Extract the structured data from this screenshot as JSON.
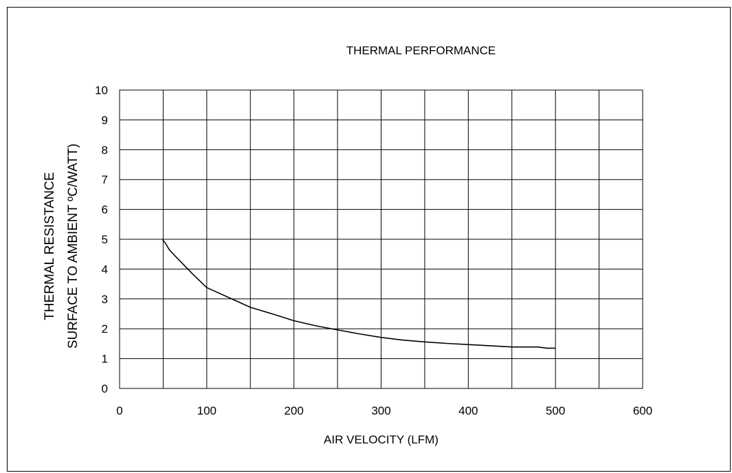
{
  "chart_data": {
    "type": "line",
    "title": "THERMAL PERFORMANCE",
    "xlabel": "AIR VELOCITY (LFM)",
    "ylabel_lines": [
      "THERMAL RESISTANCE",
      "SURFACE TO AMBIENT ºC/WATT)"
    ],
    "xlim": [
      0,
      600
    ],
    "ylim": [
      0,
      10
    ],
    "x_ticks": [
      0,
      100,
      200,
      300,
      400,
      500,
      600
    ],
    "y_ticks": [
      0,
      1,
      2,
      3,
      4,
      5,
      6,
      7,
      8,
      9,
      10
    ],
    "grid": true,
    "x_grid_step": 50,
    "y_grid_step": 1,
    "line_color": "#000000",
    "series": [
      {
        "x": [
          49,
          53,
          57,
          65,
          75,
          85,
          100,
          125,
          150,
          175,
          200,
          225,
          250,
          275,
          300,
          325,
          350,
          375,
          400,
          425,
          450,
          475,
          480,
          490,
          500
        ],
        "y": [
          5.0,
          4.85,
          4.65,
          4.4,
          4.1,
          3.8,
          3.38,
          3.05,
          2.72,
          2.5,
          2.27,
          2.1,
          1.96,
          1.83,
          1.71,
          1.62,
          1.56,
          1.51,
          1.47,
          1.43,
          1.39,
          1.39,
          1.39,
          1.35,
          1.35
        ]
      }
    ]
  }
}
